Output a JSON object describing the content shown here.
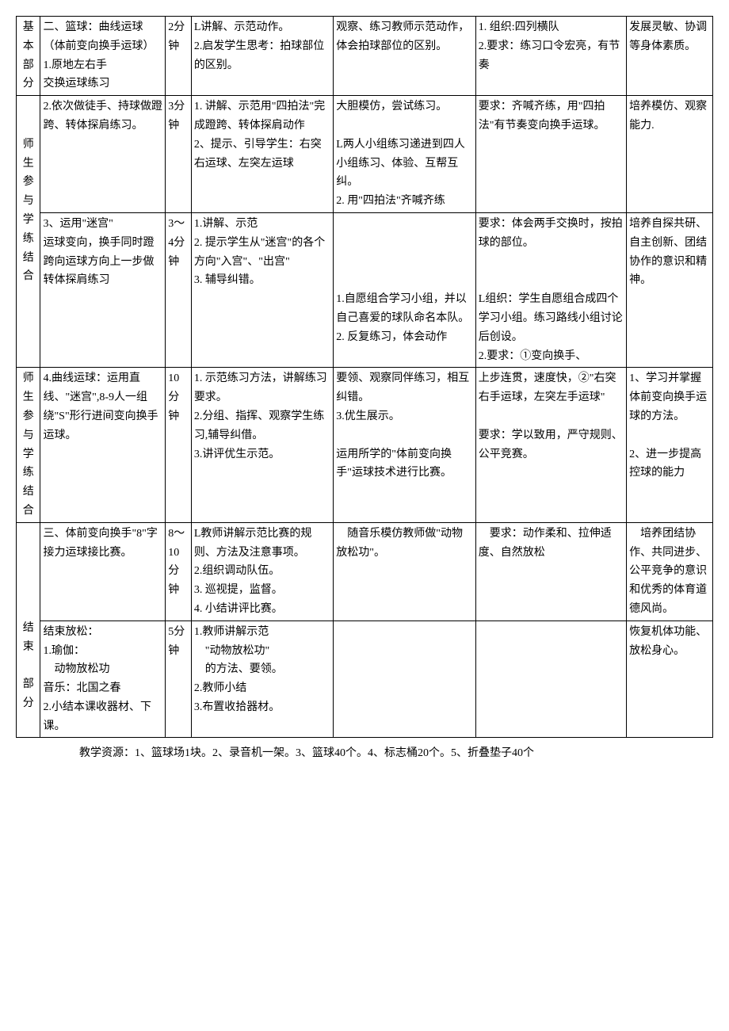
{
  "table": {
    "row1": {
      "c1": "基 本 部 分",
      "c2": "二、篮球：曲线运球（体前变向换手运球）\n1.原地左右手\n交换运球练习",
      "c3": "2分钟",
      "c4": "L讲解、示范动作。\n2.启发学生思考：拍球部位的区别。",
      "c5": "观察、练习教师示范动作，体会拍球部位的区别。",
      "c6": "1. 组织:四列横队\n2.要求：练习口令宏亮，有节奏",
      "c7": "发展灵敏、协调等身体素质。"
    },
    "row2": {
      "c1": "",
      "c2": "2.依次做徒手、持球做蹬跨、转体探肩练习。",
      "c3": "3分钟",
      "c4": "1. 讲解、示范用\"四拍法\"完成蹬跨、转体探肩动作\n2、提示、引导学生：右突右运球、左突左运球",
      "c5": "大胆模仿，尝试练习。\n\nL两人小组练习递进到四人小组练习、体验、互帮互纠。\n2. 用\"四拍法\"齐喊齐练",
      "c6": "要求：齐喊齐练，用\"四拍法\"有节奏变向换手运球。",
      "c7": "培养模仿、观察能力."
    },
    "row2b": {
      "c1": "师 生 参 与 学 练 结 合"
    },
    "row3": {
      "c2": "3、运用\"迷宫\"\n运球变向，换手同时蹬跨向运球方向上一步做转体探肩练习",
      "c3": "3～4分钟",
      "c4": "1.讲解、示范\n2. 提示学生从\"迷宫\"的各个方向\"入宫\"、\"出宫\"\n3. 辅导纠错。",
      "c5": "\n\n\n\n1.自愿组合学习小组，并以自己喜爱的球队命名本队。\n2. 反复练习，体会动作",
      "c6": "要求：体会两手交换时，按拍球的部位。\n\n\nL组织：学生自愿组合成四个学习小组。练习路线小组讨论后创设。\n2.要求：①变向换手、",
      "c7": "培养自探共研、自主创新、团结协作的意识和精神。"
    },
    "row4": {
      "c1": "师 生 参 与 学 练 结 合",
      "c2": "4.曲线运球：运用直线、\"迷宫\",8-9人一组绕\"S\"形行进间变向换手运球。",
      "c3": "10分钟",
      "c4": "1. 示范练习方法，讲解练习要求。\n2.分组、指挥、观察学生练习,辅导纠借。\n3.讲评优生示范。",
      "c5": "要领、观察同伴练习，相互纠错。\n3.优生展示。\n\n运用所学的\"体前变向换手\"运球技术进行比赛。",
      "c6": "上步连贯，速度快，②\"右突右手运球，左突左手运球\"\n\n要求：学以致用，严守规则、公平竞赛。",
      "c7": "1、学习并掌握体前变向换手运球的方法。\n\n2、进一步提高控球的能力"
    },
    "row5": {
      "c1": "",
      "c2": "三、体前变向换手\"8\"字接力运球接比赛。",
      "c3": "8～10分钟",
      "c4": "L教师讲解示范比赛的规则、方法及注意事项。\n2.组织调动队伍。\n3. 巡视提，监督。\n4. 小结讲评比赛。",
      "c5": "　随音乐模仿教师做\"动物放松功\"。",
      "c6": "　要求：动作柔和、拉伸适度、自然放松",
      "c7": "　培养团结协作、共同进步、公平竞争的意识和优秀的体育道德风尚。"
    },
    "row6": {
      "c1": "结 束\n\n部分",
      "c2": "结束放松：\n1.瑜伽：\n　动物放松功\n音乐：北国之春\n2.小结本课收器材、下课。",
      "c3": "5分钟",
      "c4": "1.教师讲解示范\n　\"动物放松功\"\n　的方法、要领。\n2.教师小结\n3.布置收拾器材。",
      "c5": "",
      "c6": "",
      "c7": "恢复机体功能、放松身心。"
    }
  },
  "footer": "教学资源：1、篮球场1块。2、录音机一架。3、篮球40个。4、标志桶20个。5、折叠垫子40个"
}
